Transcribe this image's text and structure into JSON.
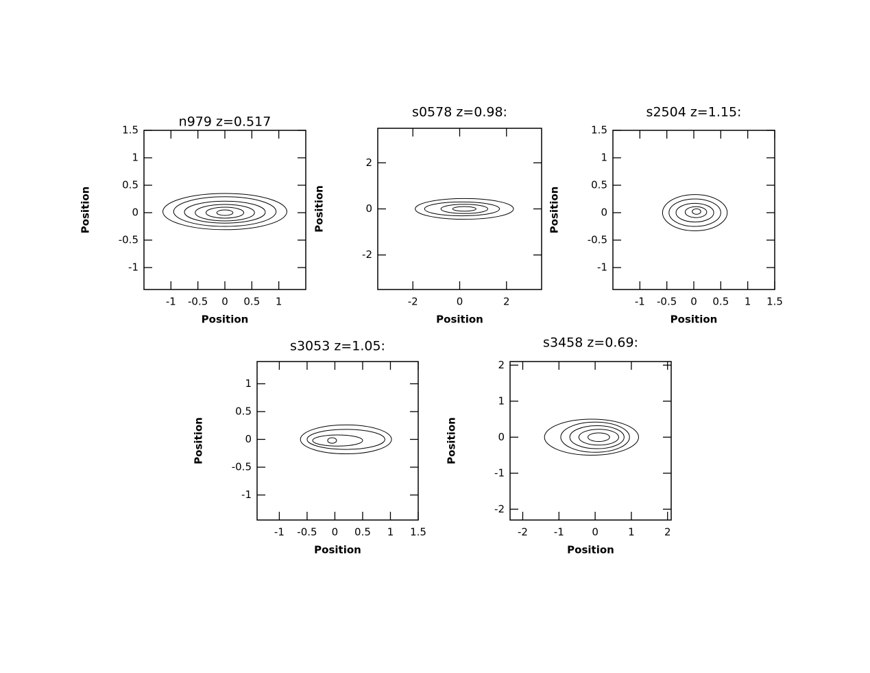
{
  "chart_data": [
    {
      "type": "contour",
      "title": "n979  z=0.517",
      "xlabel": "Position",
      "ylabel": "Position",
      "xlim": [
        -1.5,
        1.5
      ],
      "ylim": [
        -1.4,
        1.5
      ],
      "xticks": [
        -1,
        -0.5,
        0,
        0.5,
        1
      ],
      "yticks": [
        -1,
        -0.5,
        0,
        0.5,
        1,
        1.5
      ],
      "contours": [
        {
          "cx": 0,
          "cy": 0.02,
          "rx": 1.15,
          "ry": 0.33
        },
        {
          "cx": 0,
          "cy": 0.02,
          "rx": 0.95,
          "ry": 0.27
        },
        {
          "cx": 0,
          "cy": 0.01,
          "rx": 0.75,
          "ry": 0.2
        },
        {
          "cx": 0,
          "cy": 0,
          "rx": 0.55,
          "ry": 0.15
        },
        {
          "cx": 0,
          "cy": 0,
          "rx": 0.35,
          "ry": 0.1
        },
        {
          "cx": 0,
          "cy": 0,
          "rx": 0.15,
          "ry": 0.05
        }
      ]
    },
    {
      "type": "contour",
      "title": "s0578  z=0.98:",
      "xlabel": "Position",
      "ylabel": "Position",
      "xlim": [
        -3.5,
        3.5
      ],
      "ylim": [
        -3.5,
        3.5
      ],
      "xticks": [
        -2,
        0,
        2
      ],
      "yticks": [
        -2,
        0,
        2
      ],
      "contours": [
        {
          "cx": 0.2,
          "cy": 0,
          "rx": 2.1,
          "ry": 0.45
        },
        {
          "cx": 0.1,
          "cy": 0,
          "rx": 1.6,
          "ry": 0.3
        },
        {
          "cx": 0.2,
          "cy": 0,
          "rx": 1.0,
          "ry": 0.2
        },
        {
          "cx": 0.2,
          "cy": 0,
          "rx": 0.5,
          "ry": 0.1
        }
      ]
    },
    {
      "type": "contour",
      "title": "s2504  z=1.15:",
      "xlabel": "Position",
      "ylabel": "Position",
      "xlim": [
        -1.5,
        1.5
      ],
      "ylim": [
        -1.4,
        1.5
      ],
      "xticks": [
        -1,
        -0.5,
        0,
        0.5,
        1,
        1.5
      ],
      "yticks": [
        -1,
        -0.5,
        0,
        0.5,
        1,
        1.5
      ],
      "contours": [
        {
          "cx": 0.02,
          "cy": 0,
          "rx": 0.6,
          "ry": 0.33
        },
        {
          "cx": 0.02,
          "cy": 0,
          "rx": 0.48,
          "ry": 0.25
        },
        {
          "cx": 0.02,
          "cy": 0,
          "rx": 0.35,
          "ry": 0.17
        },
        {
          "cx": 0.04,
          "cy": 0.01,
          "rx": 0.2,
          "ry": 0.1
        },
        {
          "cx": 0.05,
          "cy": 0.02,
          "rx": 0.08,
          "ry": 0.05
        }
      ]
    },
    {
      "type": "contour",
      "title": "s3053  z=1.05:",
      "xlabel": "Position",
      "ylabel": "Position",
      "xlim": [
        -1.4,
        1.5
      ],
      "ylim": [
        -1.45,
        1.4
      ],
      "xticks": [
        -1,
        -0.5,
        0,
        0.5,
        1,
        1.5
      ],
      "yticks": [
        -1,
        -0.5,
        0,
        0.5,
        1
      ],
      "contours": [
        {
          "cx": 0.2,
          "cy": 0,
          "rx": 0.82,
          "ry": 0.26
        },
        {
          "cx": 0.2,
          "cy": 0,
          "rx": 0.7,
          "ry": 0.18
        },
        {
          "cx": 0.05,
          "cy": -0.02,
          "rx": 0.45,
          "ry": 0.1
        },
        {
          "cx": -0.05,
          "cy": -0.02,
          "rx": 0.08,
          "ry": 0.05
        }
      ]
    },
    {
      "type": "contour",
      "title": "s3458  z=0.69:",
      "xlabel": "Position",
      "ylabel": "Position",
      "xlim": [
        -2.35,
        2.1
      ],
      "ylim": [
        -2.3,
        2.1
      ],
      "xticks": [
        -2,
        -1,
        0,
        1,
        2
      ],
      "yticks": [
        -2,
        -1,
        0,
        1,
        2
      ],
      "contours": [
        {
          "cx": -0.1,
          "cy": 0,
          "rx": 1.3,
          "ry": 0.5
        },
        {
          "cx": 0,
          "cy": 0,
          "rx": 0.95,
          "ry": 0.42
        },
        {
          "cx": 0.05,
          "cy": 0,
          "rx": 0.75,
          "ry": 0.32
        },
        {
          "cx": 0.1,
          "cy": 0,
          "rx": 0.55,
          "ry": 0.22
        },
        {
          "cx": 0.1,
          "cy": 0,
          "rx": 0.3,
          "ry": 0.12
        }
      ]
    }
  ]
}
